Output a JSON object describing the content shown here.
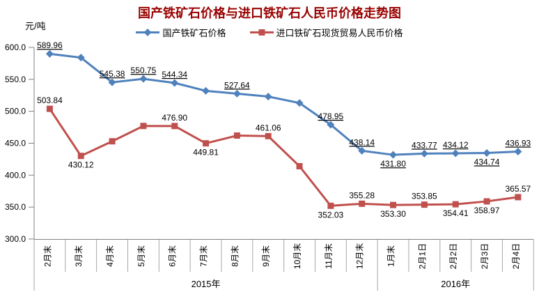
{
  "title": "国产铁矿石价格与进口铁矿石人民币价格走势图",
  "chart_data": {
    "type": "line",
    "title": "国产铁矿石价格与进口铁矿石人民币价格走势图",
    "title_color": "#990000",
    "unit": "元/吨",
    "background": "#ffffff",
    "grid": "off",
    "legend_position": "top-center",
    "axis_color": "#808080",
    "cell_border_color": "#a6a6a6",
    "y_axis": {
      "min": 300,
      "max": 600,
      "step": 50,
      "tick_labels": [
        "300.0",
        "350.0",
        "400.0",
        "450.0",
        "500.0",
        "550.0",
        "600.0"
      ]
    },
    "categories": [
      "2月末",
      "3月末",
      "4月末",
      "5月末",
      "6月末",
      "7月末",
      "8月末",
      "9月末",
      "10月末",
      "11月末",
      "12月末",
      "1月末",
      "2月1日",
      "2月2日",
      "2月3日",
      "2月4日"
    ],
    "category_groups": [
      {
        "label": "2015年",
        "from": 0,
        "to": 10
      },
      {
        "label": "2016年",
        "from": 11,
        "to": 15
      }
    ],
    "series": [
      {
        "name": "国产铁矿石价格",
        "color": "#4F81BD",
        "marker": "diamond",
        "labels_underlined": true,
        "values": [
          589.96,
          584,
          545.38,
          550.75,
          544.34,
          532,
          527.64,
          523,
          513,
          478.95,
          438.14,
          431.8,
          433.77,
          434.12,
          434.74,
          436.93
        ],
        "labels": [
          "589.96",
          null,
          "545.38",
          "550.75",
          "544.34",
          null,
          "527.64",
          null,
          null,
          "478.95",
          "438.14",
          "431.80",
          "433.77",
          "434.12",
          "434.74",
          "436.93"
        ],
        "label_positions": [
          "above",
          null,
          "above",
          "above",
          "above",
          null,
          "above",
          null,
          null,
          "above",
          "above",
          "below",
          "above",
          "above",
          "below",
          "above"
        ]
      },
      {
        "name": "进口铁矿石现货贸易人民币价格",
        "color": "#C0504D",
        "marker": "square",
        "labels_underlined": false,
        "values": [
          503.84,
          430.12,
          453,
          477,
          476.9,
          449.81,
          462,
          461.06,
          414,
          352.03,
          355.28,
          353.3,
          353.85,
          354.41,
          358.97,
          365.57
        ],
        "labels": [
          "503.84",
          "430.12",
          null,
          null,
          "476.90",
          "449.81",
          null,
          "461.06",
          null,
          "352.03",
          "355.28",
          "353.30",
          "353.85",
          "354.41",
          "358.97",
          "365.57"
        ],
        "label_positions": [
          "above",
          "below",
          null,
          null,
          "above",
          "below",
          null,
          "above",
          null,
          "below",
          "above",
          "below",
          "above",
          "below",
          "below",
          "above"
        ]
      }
    ]
  }
}
